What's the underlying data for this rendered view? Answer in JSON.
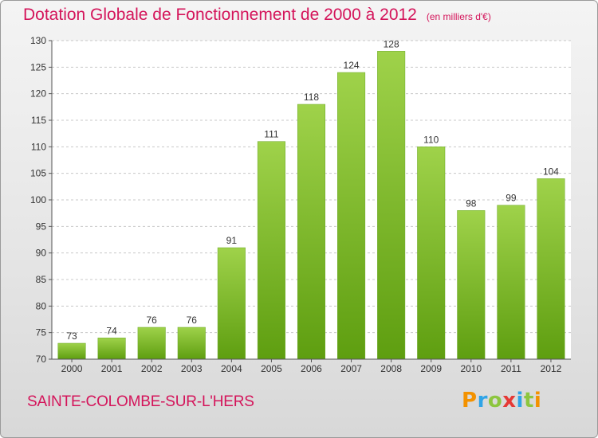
{
  "title": "Dotation Globale de Fonctionnement de 2000 à 2012",
  "unit_note": "(en milliers d'€)",
  "commune": "SAINTE-COLOMBE-SUR-L'HERS",
  "brand": {
    "letters": [
      "P",
      "r",
      "o",
      "x",
      "i",
      "t",
      "i"
    ]
  },
  "colors": {
    "accent": "#d4145a",
    "bar_top": "#9fd24a",
    "bar_bottom": "#5e9e10",
    "grid": "#c8c8c8"
  },
  "chart_data": {
    "type": "bar",
    "categories": [
      "2000",
      "2001",
      "2002",
      "2003",
      "2004",
      "2005",
      "2006",
      "2007",
      "2008",
      "2009",
      "2010",
      "2011",
      "2012"
    ],
    "values": [
      73,
      74,
      76,
      76,
      91,
      111,
      118,
      124,
      128,
      110,
      98,
      99,
      104
    ],
    "title": "Dotation Globale de Fonctionnement de 2000 à 2012",
    "ylabel": "",
    "xlabel": "",
    "ylim": [
      70,
      130
    ],
    "yticks": [
      70,
      75,
      80,
      85,
      90,
      95,
      100,
      105,
      110,
      115,
      120,
      125,
      130
    ],
    "grid": true,
    "data_labels": true
  }
}
